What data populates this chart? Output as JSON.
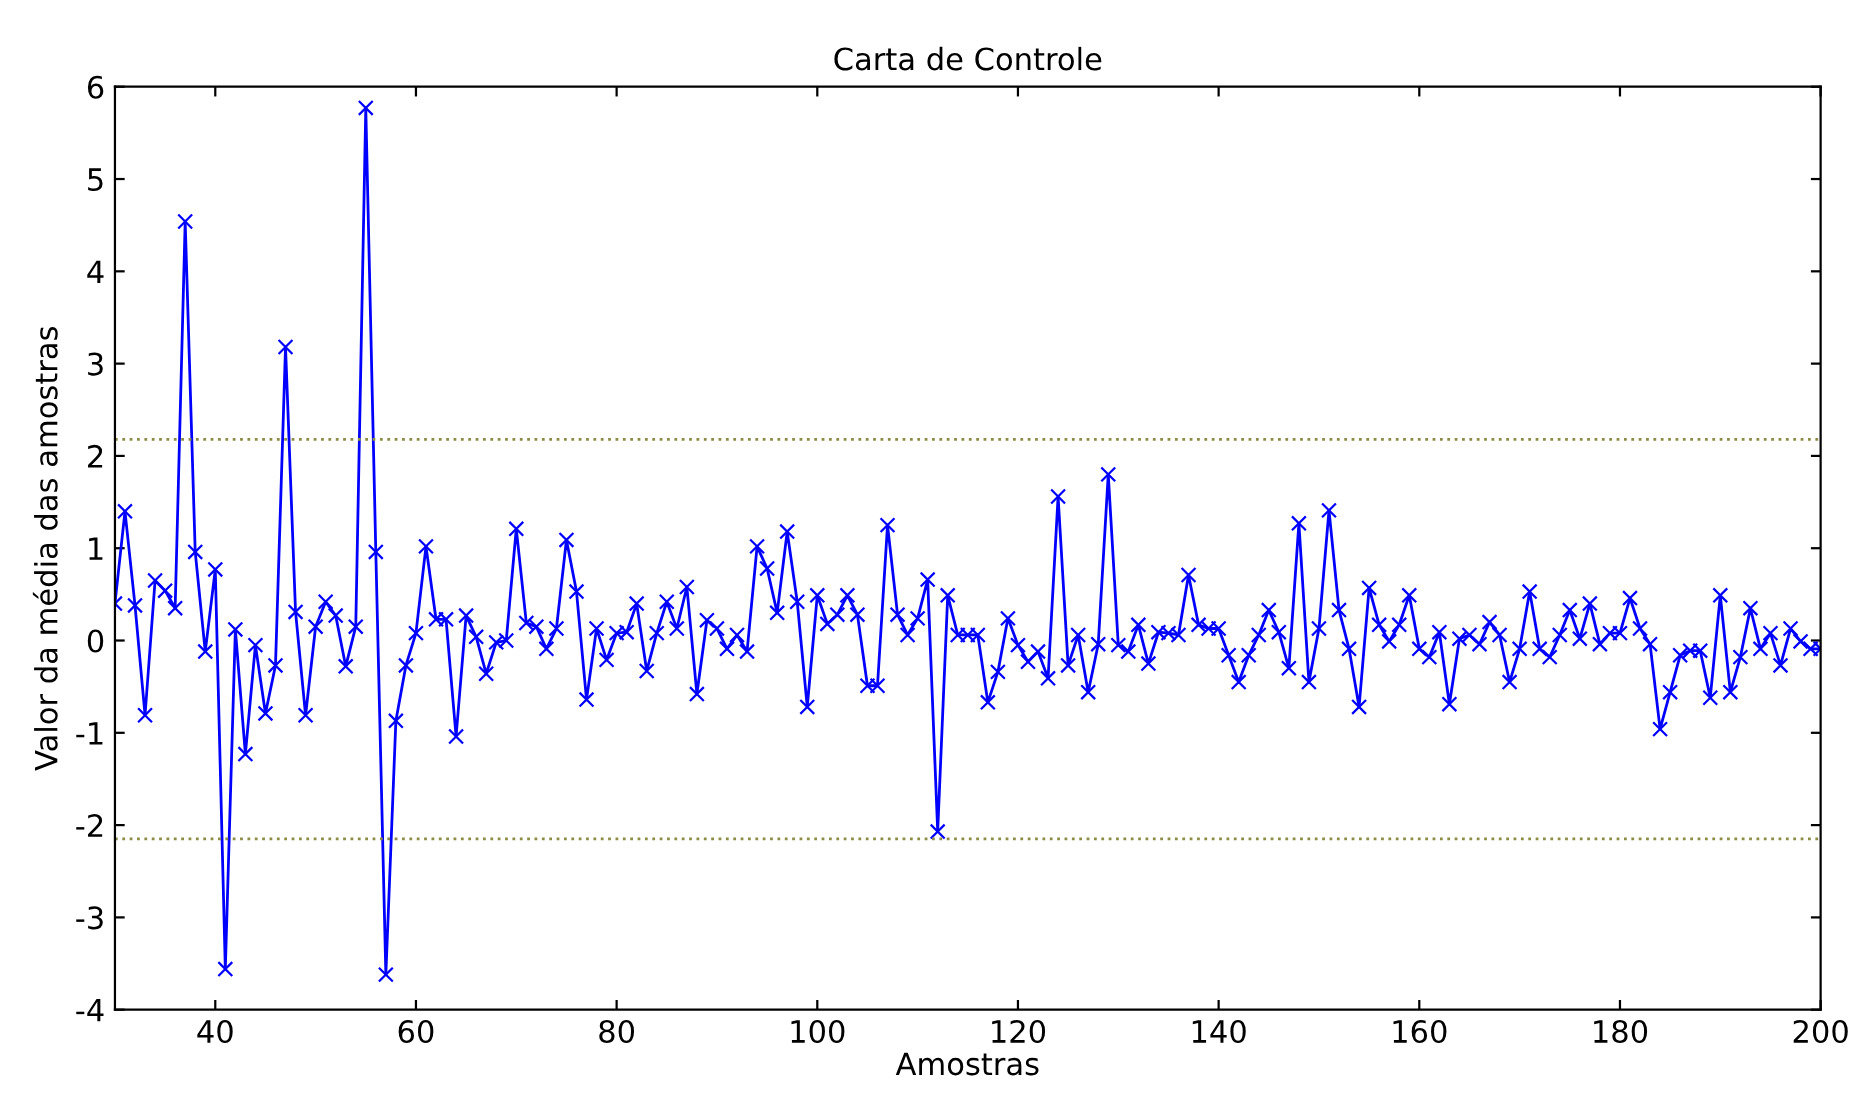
{
  "chart_data": {
    "type": "line",
    "title": "Carta de Controle",
    "xlabel": "Amostras",
    "ylabel": "Valor da média das amostras",
    "x": [
      30,
      31,
      32,
      33,
      34,
      35,
      36,
      37,
      38,
      39,
      40,
      41,
      42,
      43,
      44,
      45,
      46,
      47,
      48,
      49,
      50,
      51,
      52,
      53,
      54,
      55,
      56,
      57,
      58,
      59,
      60,
      61,
      62,
      63,
      64,
      65,
      66,
      67,
      68,
      69,
      70,
      71,
      72,
      73,
      74,
      75,
      76,
      77,
      78,
      79,
      80,
      81,
      82,
      83,
      84,
      85,
      86,
      87,
      88,
      89,
      90,
      91,
      92,
      93,
      94,
      95,
      96,
      97,
      98,
      99,
      100,
      101,
      102,
      103,
      104,
      105,
      106,
      107,
      108,
      109,
      110,
      111,
      112,
      113,
      114,
      115,
      116,
      117,
      118,
      119,
      120,
      121,
      122,
      123,
      124,
      125,
      126,
      127,
      128,
      129,
      130,
      131,
      132,
      133,
      134,
      135,
      136,
      137,
      138,
      139,
      140,
      141,
      142,
      143,
      144,
      145,
      146,
      147,
      148,
      149,
      150,
      151,
      152,
      153,
      154,
      155,
      156,
      157,
      158,
      159,
      160,
      161,
      162,
      163,
      164,
      165,
      166,
      167,
      168,
      169,
      170,
      171,
      172,
      173,
      174,
      175,
      176,
      177,
      178,
      179,
      180,
      181,
      182,
      183,
      184,
      185,
      186,
      187,
      188,
      189,
      190,
      191,
      192,
      193,
      194,
      195,
      196,
      197,
      198,
      199,
      200
    ],
    "series": [
      {
        "color": "#0000ff",
        "values": [
          0.4,
          1.4,
          0.38,
          -0.81,
          0.65,
          0.54,
          0.35,
          4.54,
          0.96,
          -0.12,
          0.77,
          -3.56,
          0.12,
          -1.23,
          -0.05,
          -0.79,
          -0.27,
          3.18,
          0.31,
          -0.81,
          0.15,
          0.42,
          0.27,
          -0.28,
          0.15,
          5.77,
          0.96,
          -3.62,
          -0.87,
          -0.27,
          0.08,
          1.02,
          0.23,
          0.23,
          -1.04,
          0.27,
          0.04,
          -0.36,
          -0.02,
          0,
          1.21,
          0.19,
          0.15,
          -0.09,
          0.13,
          1.09,
          0.53,
          -0.64,
          0.13,
          -0.21,
          0.08,
          0.09,
          0.4,
          -0.33,
          0.08,
          0.42,
          0.13,
          0.58,
          -0.58,
          0.22,
          0.13,
          -0.09,
          0.06,
          -0.12,
          1.02,
          0.78,
          0.3,
          1.18,
          0.42,
          -0.72,
          0.49,
          0.18,
          0.28,
          0.49,
          0.28,
          -0.49,
          -0.49,
          1.25,
          0.28,
          0.06,
          0.24,
          0.66,
          -2.07,
          0.49,
          0.06,
          0.06,
          0.06,
          -0.67,
          -0.34,
          0.24,
          -0.05,
          -0.23,
          -0.12,
          -0.41,
          1.56,
          -0.27,
          0.06,
          -0.56,
          -0.04,
          1.8,
          -0.05,
          -0.12,
          0.17,
          -0.25,
          0.09,
          0.08,
          0.06,
          0.71,
          0.17,
          0.13,
          0.13,
          -0.16,
          -0.45,
          -0.16,
          0.06,
          0.33,
          0.09,
          -0.3,
          1.27,
          -0.45,
          0.13,
          1.41,
          0.33,
          -0.09,
          -0.72,
          0.57,
          0.17,
          -0.01,
          0.17,
          0.49,
          -0.09,
          -0.18,
          0.09,
          -0.69,
          0.02,
          0.06,
          -0.04,
          0.2,
          0.06,
          -0.45,
          -0.09,
          0.53,
          -0.09,
          -0.18,
          0.06,
          0.33,
          0.02,
          0.4,
          -0.04,
          0.08,
          0.08,
          0.46,
          0.13,
          -0.04,
          -0.96,
          -0.56,
          -0.16,
          -0.11,
          -0.11,
          -0.62,
          0.49,
          -0.56,
          -0.18,
          0.35,
          -0.09,
          0.08,
          -0.27,
          0.13,
          -0.01,
          -0.09,
          -0.09
        ]
      }
    ],
    "marker": "cross",
    "line_style": "solid",
    "ref_lines": [
      {
        "axis": "y",
        "value": 2.18,
        "color": "#8c8c46",
        "line_style": "dotted"
      },
      {
        "axis": "y",
        "value": -2.15,
        "color": "#8c8c46",
        "line_style": "dotted"
      }
    ],
    "xlim": [
      30,
      200
    ],
    "xticks": [
      40,
      60,
      80,
      100,
      120,
      140,
      160,
      180,
      200
    ],
    "ylim": [
      -4,
      6
    ],
    "yticks": [
      -4,
      -3,
      -2,
      -1,
      0,
      1,
      2,
      3,
      4,
      5,
      6
    ],
    "grid": false
  }
}
